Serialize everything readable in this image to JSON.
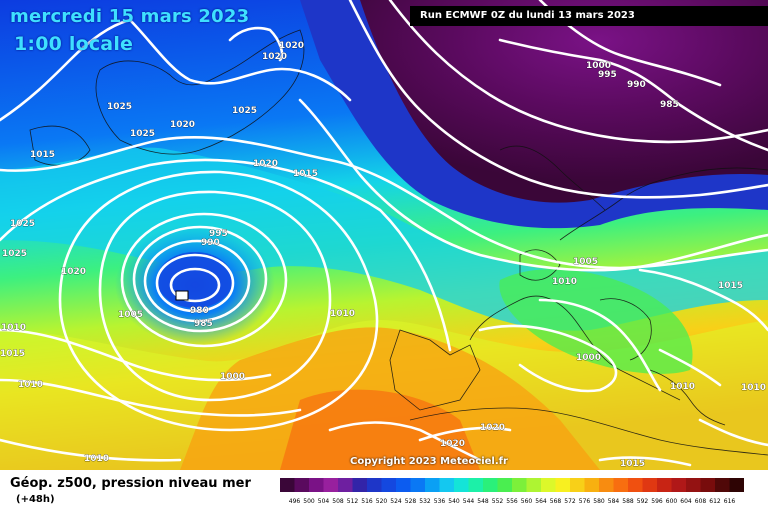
{
  "title": {
    "date": "mercredi 15 mars 2023",
    "time": "1:00 locale"
  },
  "run_label": "Run ECMWF 0Z du lundi 13 mars 2023",
  "copyright": "Copyright 2023 Meteociel.fr",
  "footer": {
    "title": "Géop. z500, pression niveau mer",
    "subtitle": "(+48h)"
  },
  "isobar_labels": [
    "1020",
    "1020",
    "1025",
    "1025",
    "1020",
    "1025",
    "1015",
    "1020",
    "1015",
    "1025",
    "1025",
    "1020",
    "995",
    "990",
    "980",
    "985",
    "1005",
    "1010",
    "1000",
    "1020",
    "1020",
    "1010",
    "1015",
    "1010",
    "1000",
    "995",
    "990",
    "985",
    "1005",
    "1010",
    "1000",
    "1015",
    "1010",
    "1010",
    "1015",
    "1010"
  ],
  "colorbar": {
    "ticks": [
      "496",
      "500",
      "504",
      "508",
      "512",
      "516",
      "520",
      "524",
      "528",
      "532",
      "536",
      "540",
      "544",
      "548",
      "552",
      "556",
      "560",
      "564",
      "568",
      "572",
      "576",
      "580",
      "584",
      "588",
      "592",
      "596",
      "600",
      "604",
      "608",
      "612",
      "616"
    ],
    "colors": [
      "#3a0638",
      "#5a0a5e",
      "#7a1286",
      "#98209e",
      "#6e1fa0",
      "#3224a8",
      "#1e36c8",
      "#1448e0",
      "#0c5cf0",
      "#0a78f4",
      "#0aa0f4",
      "#14c8f0",
      "#14e4d8",
      "#1cf0a8",
      "#2af07a",
      "#4aee50",
      "#7cf03a",
      "#aef432",
      "#dcf82a",
      "#f8f020",
      "#f8d018",
      "#f8b010",
      "#f88c10",
      "#f86e10",
      "#f05010",
      "#e03812",
      "#c82414",
      "#b01818",
      "#941212",
      "#780c0c",
      "#500808",
      "#2e0404"
    ]
  }
}
